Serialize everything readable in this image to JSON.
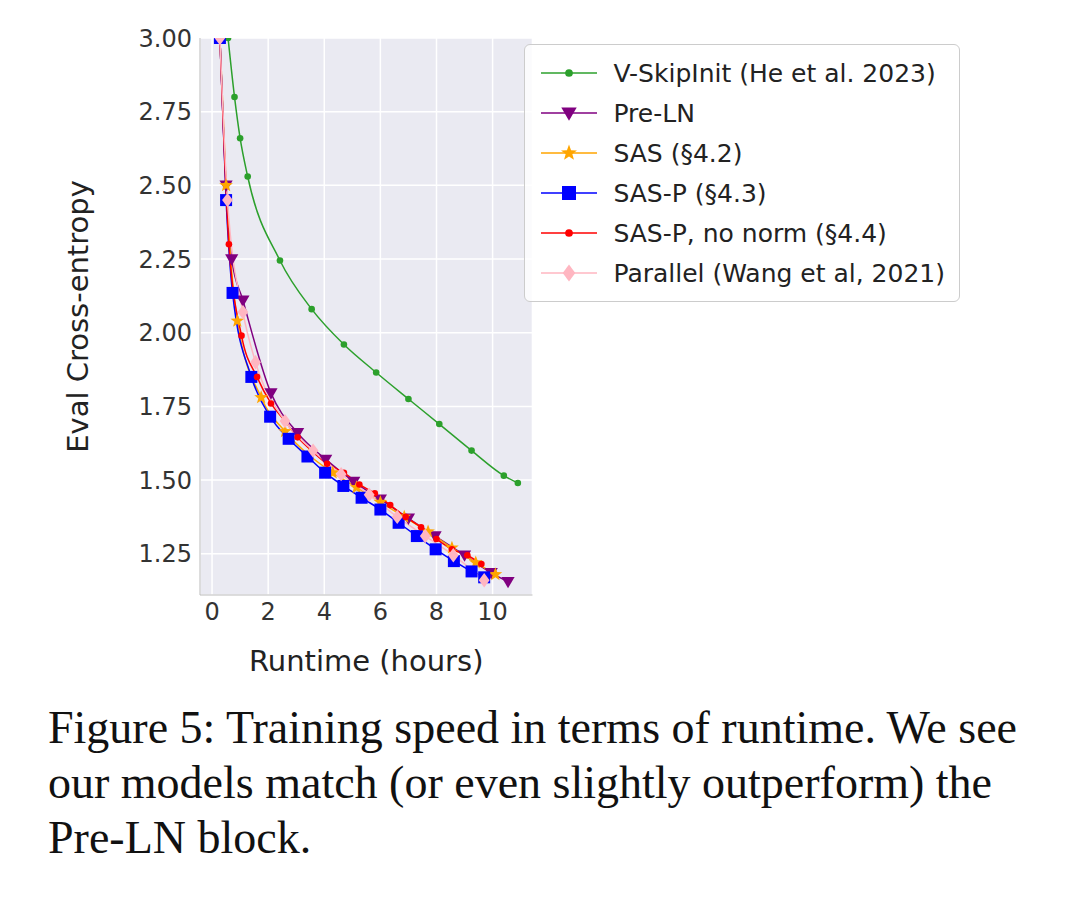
{
  "chart_data": {
    "type": "line",
    "caption": "Figure 5: Training speed in terms of runtime. We see our models match (or even slightly outperform) the Pre-LN block.",
    "x_label": "Runtime (hours)",
    "y_label": "Eval Cross-entropy",
    "xlim": [
      -0.43,
      11.42
    ],
    "xticks": [
      0,
      2,
      4,
      6,
      8,
      10
    ],
    "ylim": [
      1.11,
      3.0
    ],
    "yticks": [
      1.25,
      {
        "value": 1.5,
        "label": "1.50"
      },
      1.75,
      {
        "value": 2.0,
        "label": "2.00"
      },
      2.25,
      {
        "value": 2.5,
        "label": "2.50"
      },
      2.75,
      {
        "value": 3.0,
        "label": "3.00"
      }
    ],
    "grid": true,
    "legend": "upper right",
    "series": [
      {
        "name": "V-SkipInit (He et al. 2023)",
        "color": "#2ca02c",
        "marker": "circle",
        "x": [
          0.57,
          0.8,
          1.0,
          1.27,
          2.42,
          3.55,
          4.7,
          5.85,
          7.0,
          8.1,
          9.25,
          10.4,
          10.9
        ],
        "values": [
          3.0,
          2.8,
          2.66,
          2.53,
          2.245,
          2.08,
          1.96,
          1.865,
          1.775,
          1.69,
          1.6,
          1.515,
          1.49
        ]
      },
      {
        "name": "Pre-LN",
        "color": "#800080",
        "marker": "triangle-down",
        "x": [
          0.28,
          0.5,
          0.7,
          1.1,
          2.1,
          3.05,
          4.05,
          5.05,
          6.0,
          7.0,
          7.95,
          9.0,
          9.95,
          10.55
        ],
        "values": [
          3.0,
          2.5,
          2.25,
          2.11,
          1.795,
          1.66,
          1.57,
          1.495,
          1.435,
          1.37,
          1.31,
          1.245,
          1.185,
          1.155
        ]
      },
      {
        "name": "SAS (§4.2)",
        "color": "#ffa500",
        "marker": "star",
        "x": [
          0.28,
          0.5,
          0.9,
          1.75,
          2.6,
          3.45,
          4.3,
          5.15,
          6.0,
          6.85,
          7.7,
          8.55,
          9.4,
          10.1
        ],
        "values": [
          3.0,
          2.5,
          2.04,
          1.78,
          1.665,
          1.585,
          1.525,
          1.475,
          1.425,
          1.375,
          1.325,
          1.27,
          1.22,
          1.18
        ]
      },
      {
        "name": "SAS-P (§4.3)",
        "color": "#0000ff",
        "marker": "square",
        "x": [
          0.28,
          0.5,
          0.73,
          1.4,
          2.07,
          2.73,
          3.4,
          4.03,
          4.68,
          5.33,
          6.0,
          6.65,
          7.3,
          7.97,
          8.62,
          9.25,
          9.7
        ],
        "values": [
          3.0,
          2.45,
          2.135,
          1.85,
          1.715,
          1.64,
          1.58,
          1.525,
          1.48,
          1.44,
          1.4,
          1.355,
          1.31,
          1.265,
          1.225,
          1.19,
          1.17
        ]
      },
      {
        "name": "SAS-P, no norm (§4.4)",
        "color": "#ff0000",
        "marker": "circle",
        "x": [
          0.28,
          0.6,
          1.05,
          1.6,
          2.1,
          2.6,
          3.05,
          3.6,
          4.1,
          4.7,
          5.25,
          5.8,
          6.35,
          6.9,
          7.45,
          8.0,
          8.55,
          9.1,
          9.6
        ],
        "values": [
          3.0,
          2.3,
          1.99,
          1.85,
          1.76,
          1.7,
          1.645,
          1.595,
          1.555,
          1.525,
          1.485,
          1.455,
          1.415,
          1.375,
          1.34,
          1.3,
          1.265,
          1.245,
          1.215
        ]
      },
      {
        "name": "Parallel (Wang et al, 2021)",
        "color": "#ffb6c1",
        "marker": "diamond",
        "x": [
          0.28,
          0.55,
          1.1,
          1.55,
          2.6,
          3.6,
          4.6,
          5.6,
          6.6,
          7.6,
          8.6,
          9.7
        ],
        "values": [
          3.0,
          2.45,
          2.07,
          1.9,
          1.7,
          1.6,
          1.52,
          1.45,
          1.375,
          1.31,
          1.245,
          1.16
        ]
      }
    ]
  }
}
